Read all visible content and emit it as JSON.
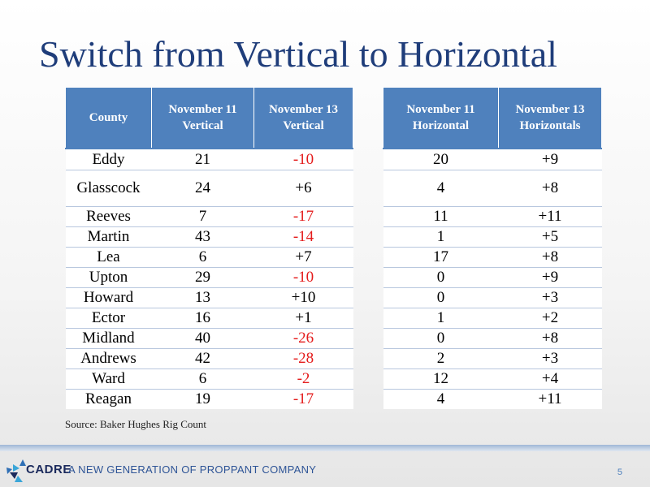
{
  "slide": {
    "title": "Switch from Vertical to Horizontal",
    "source": "Source: Baker Hughes Rig Count",
    "page_number": "5"
  },
  "footer": {
    "logo_text": "CADRE",
    "tagline": "A NEW GENERATION OF PROPPANT COMPANY"
  },
  "table": {
    "headers": [
      "County",
      "November 11 Vertical",
      "November 13 Vertical",
      "November 11 Horizontal",
      "November 13 Horizontals"
    ],
    "rows": [
      {
        "county": "Eddy",
        "nov11_vertical": "21",
        "nov13_vertical": "-10",
        "nov11_horizontal": "20",
        "nov13_horizontal": "+9"
      },
      {
        "county": "Glasscock",
        "nov11_vertical": "24",
        "nov13_vertical": "+6",
        "nov11_horizontal": "4",
        "nov13_horizontal": "+8"
      },
      {
        "county": "Reeves",
        "nov11_vertical": "7",
        "nov13_vertical": "-17",
        "nov11_horizontal": "11",
        "nov13_horizontal": "+11"
      },
      {
        "county": "Martin",
        "nov11_vertical": "43",
        "nov13_vertical": "-14",
        "nov11_horizontal": "1",
        "nov13_horizontal": "+5"
      },
      {
        "county": "Lea",
        "nov11_vertical": "6",
        "nov13_vertical": "+7",
        "nov11_horizontal": "17",
        "nov13_horizontal": "+8"
      },
      {
        "county": "Upton",
        "nov11_vertical": "29",
        "nov13_vertical": "-10",
        "nov11_horizontal": "0",
        "nov13_horizontal": "+9"
      },
      {
        "county": "Howard",
        "nov11_vertical": "13",
        "nov13_vertical": "+10",
        "nov11_horizontal": "0",
        "nov13_horizontal": "+3"
      },
      {
        "county": "Ector",
        "nov11_vertical": "16",
        "nov13_vertical": "+1",
        "nov11_horizontal": "1",
        "nov13_horizontal": "+2"
      },
      {
        "county": "Midland",
        "nov11_vertical": "40",
        "nov13_vertical": "-26",
        "nov11_horizontal": "0",
        "nov13_horizontal": "+8"
      },
      {
        "county": "Andrews",
        "nov11_vertical": "42",
        "nov13_vertical": "-28",
        "nov11_horizontal": "2",
        "nov13_horizontal": "+3"
      },
      {
        "county": "Ward",
        "nov11_vertical": "6",
        "nov13_vertical": "-2",
        "nov11_horizontal": "12",
        "nov13_horizontal": "+4"
      },
      {
        "county": "Reagan",
        "nov11_vertical": "19",
        "nov13_vertical": "-17",
        "nov11_horizontal": "4",
        "nov13_horizontal": "+11"
      }
    ]
  },
  "colors": {
    "title": "#1f3d7a",
    "header_fill": "#4f81bd",
    "negative_value": "#e41b1b",
    "tagline": "#2f5597"
  },
  "icons": {
    "logo": "cadre-logo-icon"
  }
}
